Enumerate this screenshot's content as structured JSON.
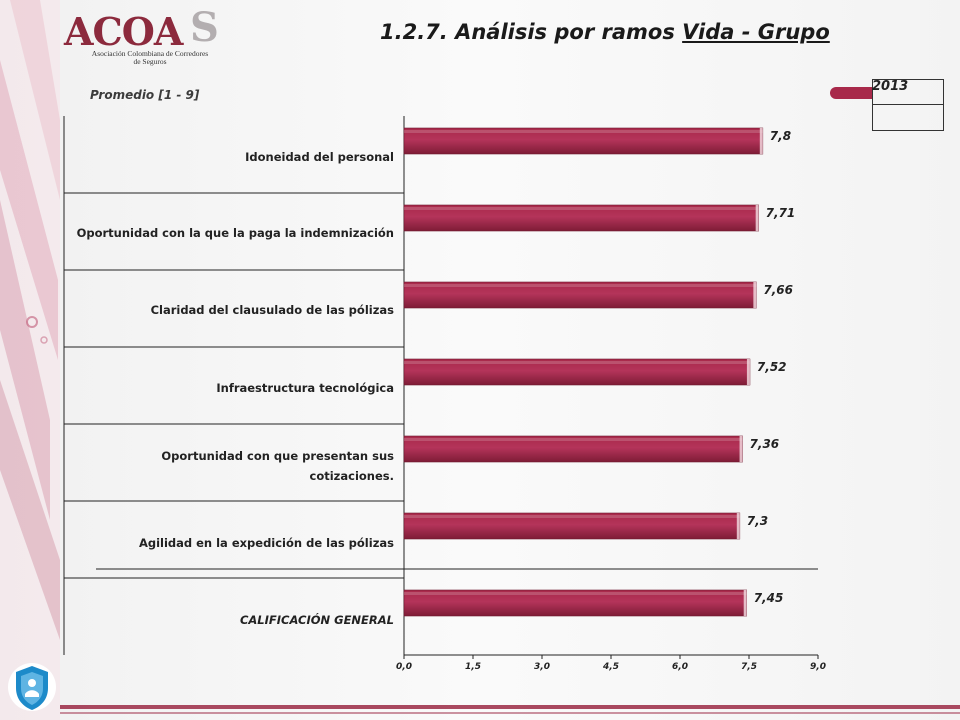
{
  "header": {
    "logo_text": "ACOA",
    "logo_s": "S",
    "logo_subtitle": "Asociación Colombiana de Corredores de Seguros",
    "title_prefix": "1.2.7. Análisis por ramos ",
    "title_underlined": "Vida - Grupo",
    "subtitle": "Promedio  [1 - 9]"
  },
  "colors": {
    "bar": "#a8294a",
    "bar_dark": "#7e1c36",
    "accent": "#8c2a3d"
  },
  "chart_data": {
    "type": "bar",
    "orientation": "horizontal",
    "categories": [
      "Idoneidad del personal",
      "Oportunidad con la que la paga la indemnización",
      "Claridad del clausulado de las pólizas",
      "Infraestructura tecnológica",
      "Oportunidad con que presentan sus cotizaciones.",
      "Agilidad en la expedición de las pólizas",
      "CALIFICACIÓN GENERAL"
    ],
    "series": [
      {
        "name": "2013",
        "values": [
          7.8,
          7.71,
          7.66,
          7.52,
          7.36,
          7.3,
          7.45
        ],
        "labels": [
          "7,8",
          "7,71",
          "7,66",
          "7,52",
          "7,36",
          "7,3",
          "7,45"
        ]
      }
    ],
    "xlim": [
      0,
      9
    ],
    "xticks": [
      "0,0",
      "1,5",
      "3,0",
      "4,5",
      "6,0",
      "7,5",
      "9,0"
    ],
    "legend_position": "top-right",
    "grid": false
  },
  "footer": {
    "badge_icon": "shield-icon"
  }
}
